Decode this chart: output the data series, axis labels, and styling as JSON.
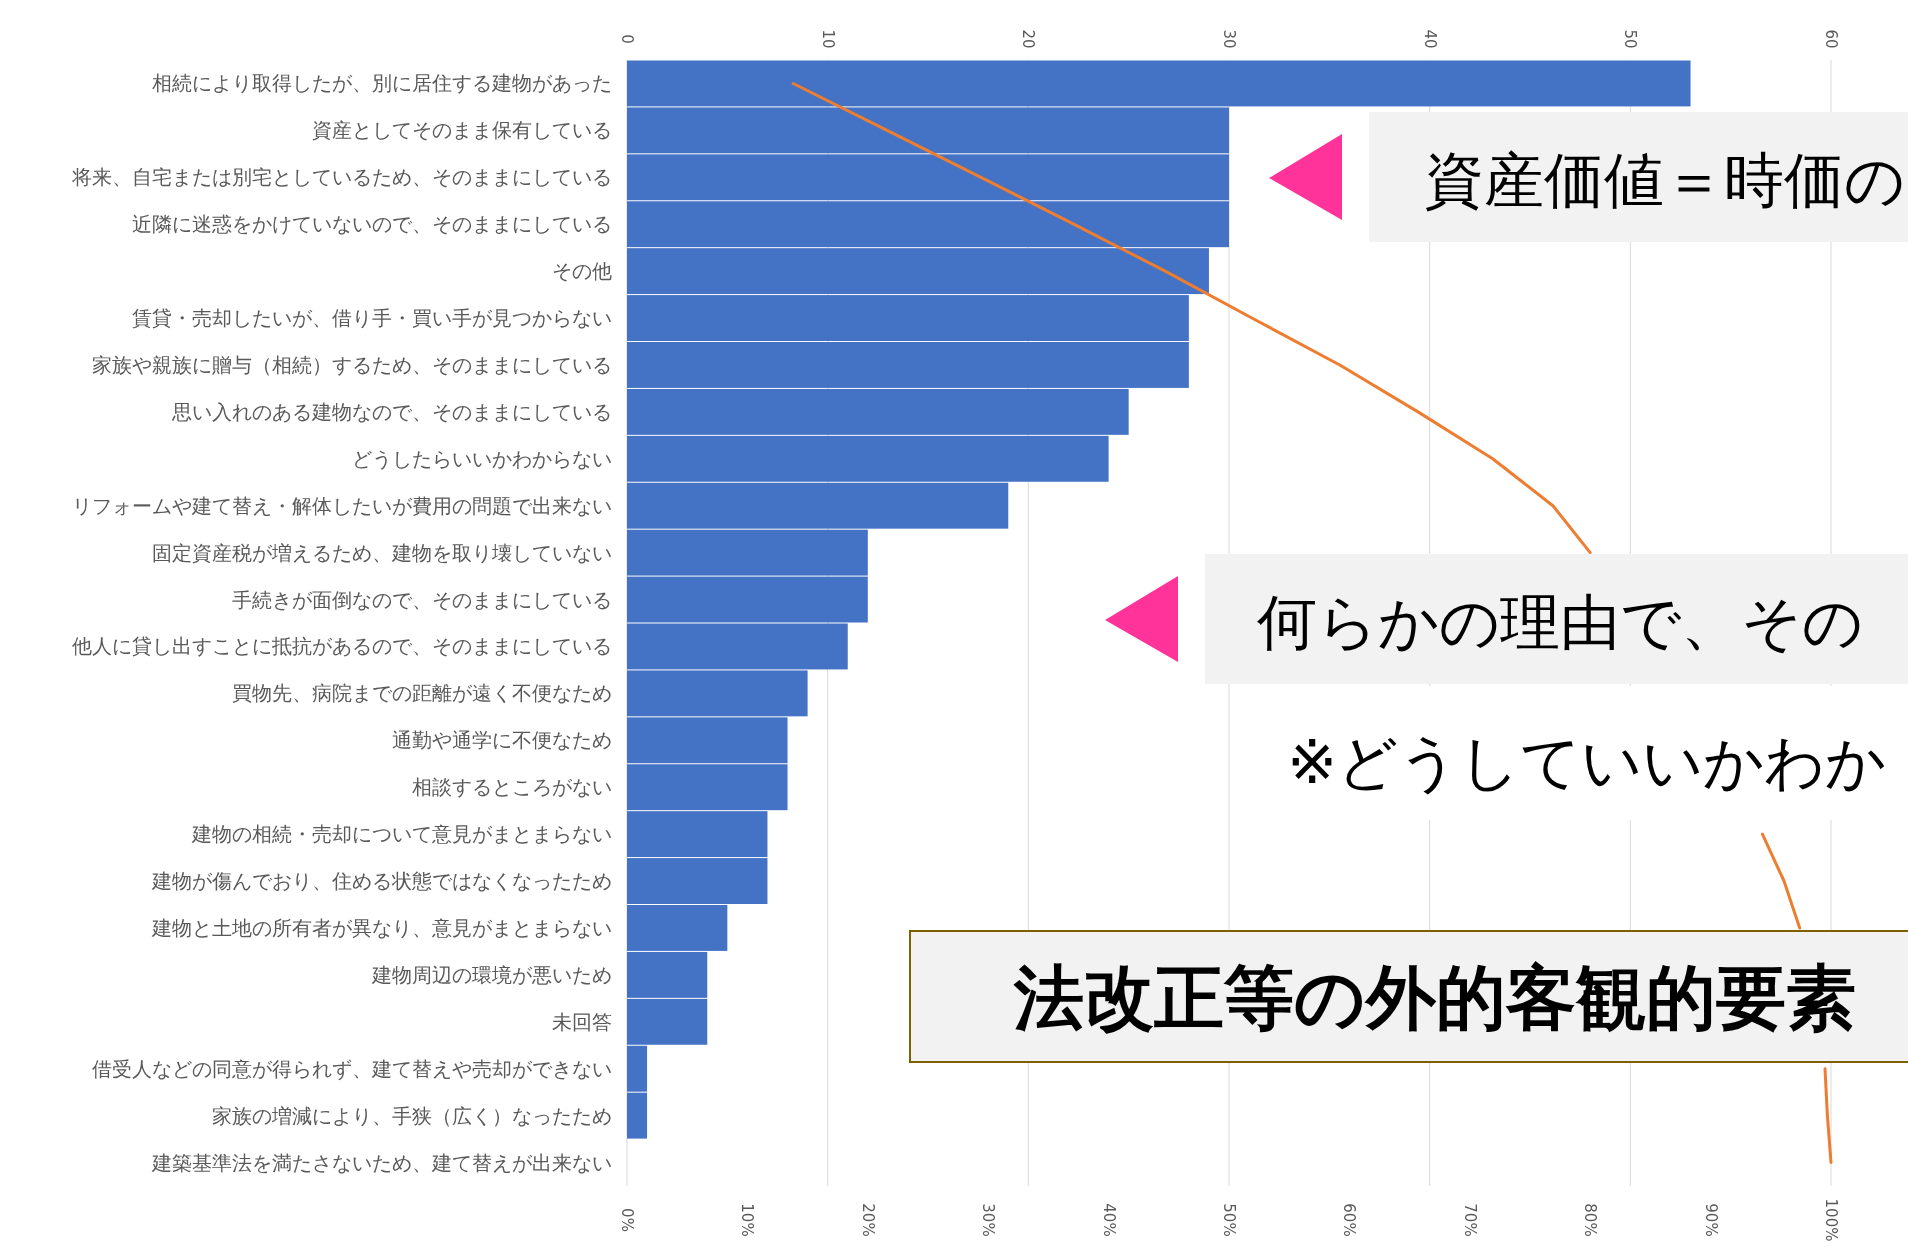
{
  "chart_data": {
    "type": "bar",
    "orientation": "horizontal",
    "categories": [
      "相続により取得したが、別に居住する建物があった",
      "資産としてそのまま保有している",
      "将来、自宅または別宅としているため、そのままにしている",
      "近隣に迷惑をかけていないので、そのままにしている",
      "その他",
      "賃貸・売却したいが、借り手・買い手が見つからない",
      "家族や親族に贈与（相続）するため、そのままにしている",
      "思い入れのある建物なので、そのままにしている",
      "どうしたらいいかわからない",
      "リフォームや建て替え・解体したいが費用の問題で出来ない",
      "固定資産税が増えるため、建物を取り壊していない",
      "手続きが面倒なので、そのままにしている",
      "他人に貸し出すことに抵抗があるので、そのままにしている",
      "買物先、病院までの距離が遠く不便なため",
      "通勤や通学に不便なため",
      "相談するところがない",
      "建物の相続・売却について意見がまとまらない",
      "建物が傷んでおり、住める状態ではなくなったため",
      "建物と土地の所有者が異なり、意見がまとまらない",
      "建物周辺の環境が悪いため",
      "未回答",
      "借受人などの同意が得られず、建て替えや売却ができない",
      "家族の増減により、手狭（広く）なったため",
      "建築基準法を満たさないため、建て替えが出来ない"
    ],
    "series": [
      {
        "color": "#4472c4",
        "values": [
          53,
          30,
          30,
          30,
          29,
          28,
          28,
          25,
          24,
          19,
          12,
          12,
          11,
          9,
          8,
          8,
          7,
          7,
          5,
          4,
          4,
          1,
          1,
          0
        ]
      },
      {
        "type": "line",
        "axis": "x2",
        "color": "#ed7d31",
        "values": [
          13.8,
          21.6,
          29.4,
          37.1,
          44.7,
          51.9,
          59.2,
          65.7,
          71.9,
          76.9,
          80.0,
          null,
          null,
          null,
          null,
          null,
          94.3,
          96.1,
          97.4,
          null,
          null,
          99.5,
          99.7,
          100
        ]
      }
    ],
    "xlim": [
      0,
      60
    ],
    "xticks": [
      0,
      10,
      20,
      30,
      40,
      50,
      60
    ],
    "x2lim": [
      0,
      100
    ],
    "x2ticks": [
      {
        "value": 0,
        "label": "0%"
      },
      {
        "value": 10,
        "label": "10%"
      },
      {
        "value": 20,
        "label": "20%"
      },
      {
        "value": 30,
        "label": "30%"
      },
      {
        "value": 40,
        "label": "40%"
      },
      {
        "value": 50,
        "label": "50%"
      },
      {
        "value": 60,
        "label": "60%"
      },
      {
        "value": 70,
        "label": "70%"
      },
      {
        "value": 80,
        "label": "80%"
      },
      {
        "value": 90,
        "label": "90%"
      },
      {
        "value": 100,
        "label": "100%"
      }
    ],
    "grid": "x",
    "annotations": [
      "資産価値＝時価の",
      "何らかの理由で、その",
      "※どうしていいかわか",
      "法改正等の外的客観的要素"
    ]
  }
}
